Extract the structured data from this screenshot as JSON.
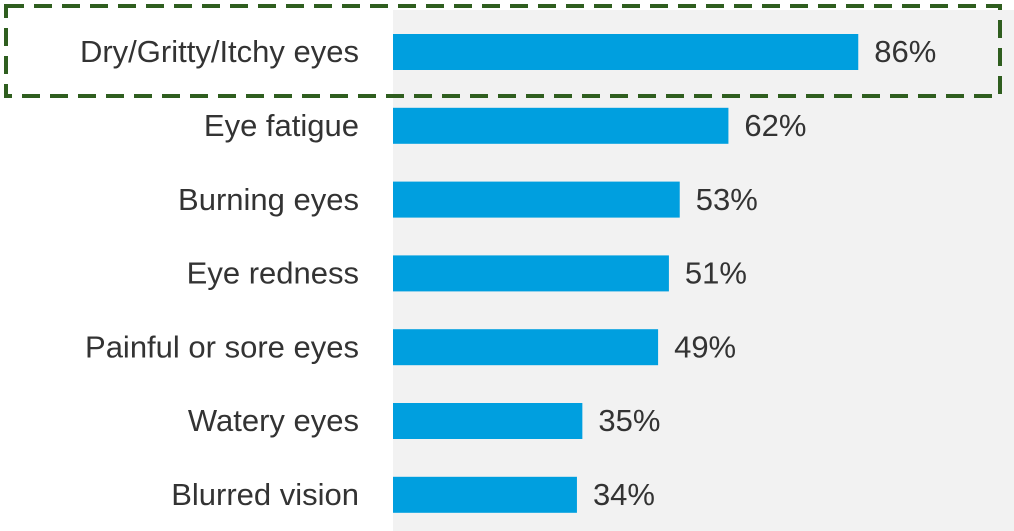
{
  "chart_data": {
    "type": "bar",
    "orientation": "horizontal",
    "categories": [
      "Dry/Gritty/Itchy eyes",
      "Eye fatigue",
      "Burning eyes",
      "Eye redness",
      "Painful or sore eyes",
      "Watery eyes",
      "Blurred vision"
    ],
    "values": [
      86,
      62,
      53,
      51,
      49,
      35,
      34
    ],
    "value_labels": [
      "86%",
      "62%",
      "53%",
      "51%",
      "49%",
      "35%",
      "34%"
    ],
    "color": "#009fdf"
  }
}
